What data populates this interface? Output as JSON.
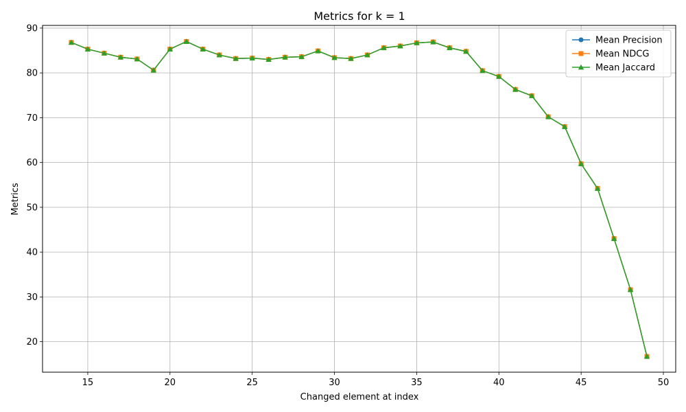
{
  "chart_data": {
    "type": "line",
    "title": "Metrics for k = 1",
    "xlabel": "Changed element at index",
    "ylabel": "Metrics",
    "xlim": [
      12.25,
      50.75
    ],
    "ylim": [
      13.2,
      90.6
    ],
    "xticks": [
      15,
      20,
      25,
      30,
      35,
      40,
      45,
      50
    ],
    "yticks": [
      20,
      30,
      40,
      50,
      60,
      70,
      80,
      90
    ],
    "grid": true,
    "legend_position": "top-right",
    "x": [
      14,
      15,
      16,
      17,
      18,
      19,
      20,
      21,
      22,
      23,
      24,
      25,
      26,
      27,
      28,
      29,
      30,
      31,
      32,
      33,
      34,
      35,
      36,
      37,
      38,
      39,
      40,
      41,
      42,
      43,
      44,
      45,
      46,
      47,
      48,
      49
    ],
    "series": [
      {
        "name": "Mean Precision",
        "color": "#1f77b4",
        "marker": "circle",
        "values": [
          86.8,
          85.3,
          84.4,
          83.5,
          83.1,
          80.6,
          85.3,
          87.0,
          85.3,
          84.0,
          83.2,
          83.3,
          83.0,
          83.5,
          83.6,
          84.9,
          83.4,
          83.2,
          84.0,
          85.6,
          86.0,
          86.7,
          86.9,
          85.6,
          84.8,
          80.5,
          79.2,
          76.3,
          74.9,
          70.2,
          68.0,
          59.7,
          54.2,
          43.0,
          31.6,
          16.7
        ]
      },
      {
        "name": "Mean NDCG",
        "color": "#ff7f0e",
        "marker": "square",
        "values": [
          86.8,
          85.3,
          84.4,
          83.5,
          83.1,
          80.6,
          85.3,
          87.0,
          85.3,
          84.0,
          83.2,
          83.3,
          83.0,
          83.5,
          83.6,
          84.9,
          83.4,
          83.2,
          84.0,
          85.6,
          86.0,
          86.7,
          86.9,
          85.6,
          84.8,
          80.5,
          79.2,
          76.3,
          74.9,
          70.2,
          68.0,
          59.7,
          54.2,
          43.0,
          31.6,
          16.7
        ]
      },
      {
        "name": "Mean Jaccard",
        "color": "#2ca02c",
        "marker": "triangle",
        "values": [
          86.8,
          85.3,
          84.4,
          83.5,
          83.1,
          80.6,
          85.3,
          87.0,
          85.3,
          84.0,
          83.2,
          83.3,
          83.0,
          83.5,
          83.6,
          84.9,
          83.4,
          83.2,
          84.0,
          85.6,
          86.0,
          86.7,
          86.9,
          85.6,
          84.8,
          80.5,
          79.2,
          76.3,
          74.9,
          70.2,
          68.0,
          59.7,
          54.2,
          43.0,
          31.6,
          16.7
        ]
      }
    ]
  }
}
